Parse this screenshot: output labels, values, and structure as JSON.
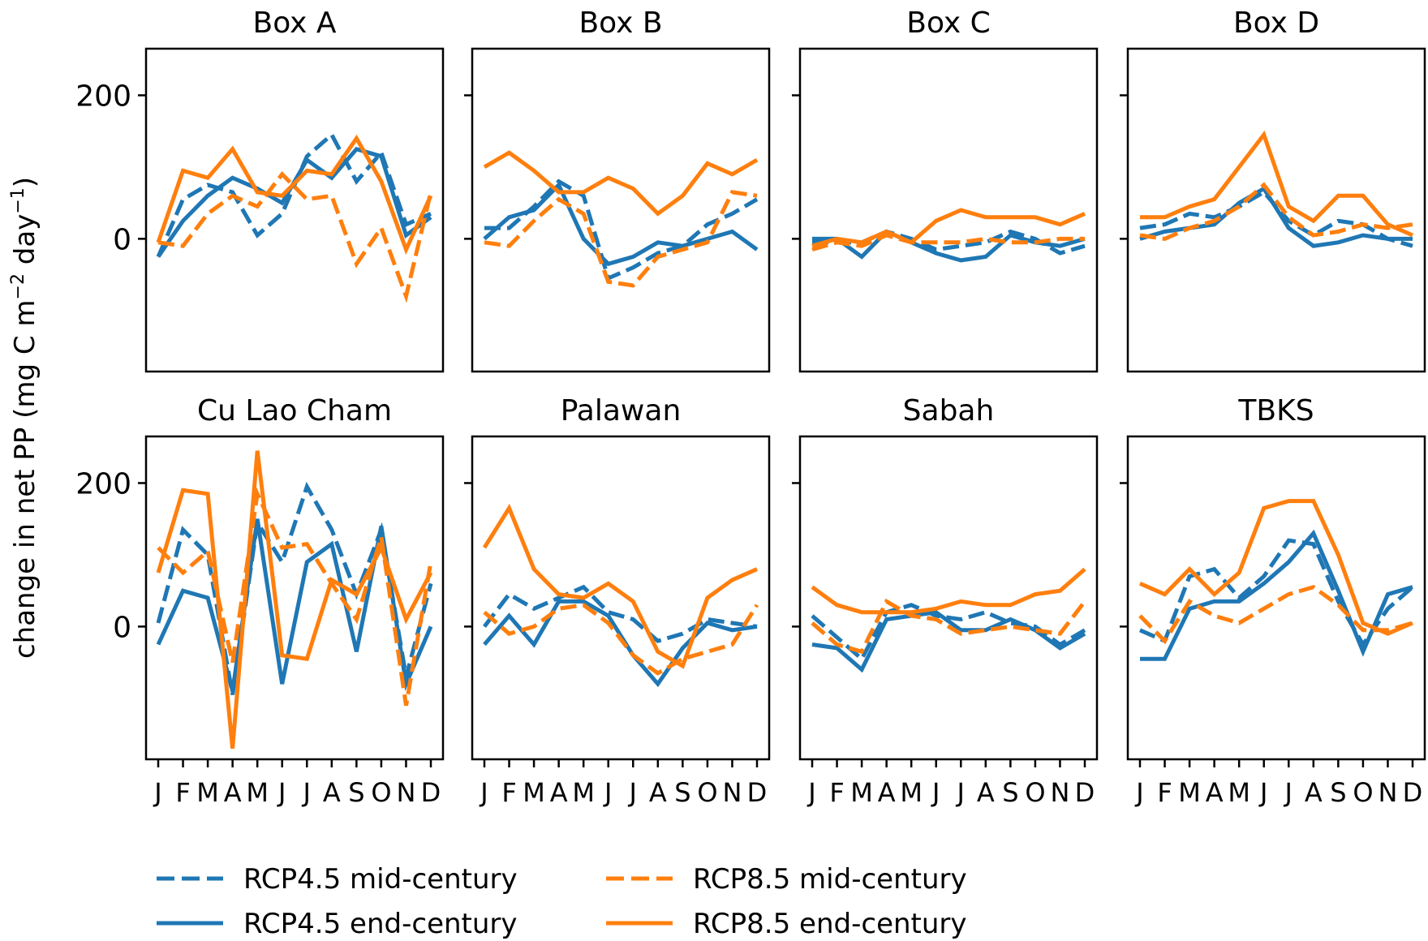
{
  "figure": {
    "ylabel": "change in net PP (mg C m",
    "ylabel_sup1": "−2",
    "ylabel_mid": " day",
    "ylabel_sup2": "−1",
    "ylabel_end": ")"
  },
  "legend": {
    "entries": [
      {
        "label": "RCP4.5 mid-century",
        "color": "#1f77b4",
        "style": "dashed"
      },
      {
        "label": "RCP8.5 mid-century",
        "color": "#ff7f0e",
        "style": "dashed"
      },
      {
        "label": "RCP4.5 end-century",
        "color": "#1f77b4",
        "style": "solid"
      },
      {
        "label": "RCP8.5 end-century",
        "color": "#ff7f0e",
        "style": "solid"
      }
    ]
  },
  "chart_data": [
    {
      "type": "line",
      "title": "Box A",
      "categories": [
        "J",
        "F",
        "M",
        "A",
        "M",
        "J",
        "J",
        "A",
        "S",
        "O",
        "N",
        "D"
      ],
      "ylim": [
        -185,
        265
      ],
      "yticks": [
        "200",
        "0"
      ],
      "series": [
        {
          "name": "RCP4.5 mid-century",
          "values": [
            -25,
            55,
            75,
            65,
            5,
            35,
            115,
            145,
            80,
            120,
            20,
            35
          ]
        },
        {
          "name": "RCP4.5 end-century",
          "values": [
            -25,
            25,
            60,
            85,
            70,
            50,
            110,
            85,
            125,
            115,
            5,
            30
          ]
        },
        {
          "name": "RCP8.5 mid-century",
          "values": [
            -5,
            -10,
            35,
            60,
            45,
            90,
            55,
            60,
            -35,
            15,
            -80,
            65
          ]
        },
        {
          "name": "RCP8.5 end-century",
          "values": [
            -5,
            95,
            85,
            125,
            65,
            60,
            95,
            90,
            140,
            80,
            -15,
            60
          ]
        }
      ]
    },
    {
      "type": "line",
      "title": "Box B",
      "categories": [
        "J",
        "F",
        "M",
        "A",
        "M",
        "J",
        "J",
        "A",
        "S",
        "O",
        "N",
        "D"
      ],
      "ylim": [
        -185,
        265
      ],
      "yticks": [
        "",
        ""
      ],
      "series": [
        {
          "name": "RCP4.5 mid-century",
          "values": [
            15,
            15,
            45,
            80,
            60,
            -55,
            -40,
            -20,
            -10,
            20,
            35,
            55
          ]
        },
        {
          "name": "RCP4.5 end-century",
          "values": [
            0,
            30,
            40,
            75,
            0,
            -35,
            -25,
            -5,
            -10,
            0,
            10,
            -15
          ]
        },
        {
          "name": "RCP8.5 mid-century",
          "values": [
            -5,
            -10,
            25,
            55,
            35,
            -60,
            -65,
            -25,
            -15,
            -5,
            65,
            60
          ]
        },
        {
          "name": "RCP8.5 end-century",
          "values": [
            100,
            120,
            95,
            65,
            65,
            85,
            70,
            35,
            60,
            105,
            90,
            110
          ]
        }
      ]
    },
    {
      "type": "line",
      "title": "Box C",
      "categories": [
        "J",
        "F",
        "M",
        "A",
        "M",
        "J",
        "J",
        "A",
        "S",
        "O",
        "N",
        "D"
      ],
      "ylim": [
        -185,
        265
      ],
      "yticks": [
        "",
        ""
      ],
      "series": [
        {
          "name": "RCP4.5 mid-century",
          "values": [
            -5,
            -5,
            -5,
            10,
            0,
            -15,
            -10,
            -5,
            10,
            0,
            -20,
            -10
          ]
        },
        {
          "name": "RCP4.5 end-century",
          "values": [
            0,
            0,
            -25,
            10,
            -5,
            -20,
            -30,
            -25,
            5,
            -5,
            -10,
            0
          ]
        },
        {
          "name": "RCP8.5 mid-century",
          "values": [
            -15,
            -5,
            -10,
            5,
            -5,
            -5,
            -5,
            0,
            -5,
            -5,
            0,
            0
          ]
        },
        {
          "name": "RCP8.5 end-century",
          "values": [
            -10,
            0,
            -5,
            10,
            -5,
            25,
            40,
            30,
            30,
            30,
            20,
            35
          ]
        }
      ]
    },
    {
      "type": "line",
      "title": "Box D",
      "categories": [
        "J",
        "F",
        "M",
        "A",
        "M",
        "J",
        "J",
        "A",
        "S",
        "O",
        "N",
        "D"
      ],
      "ylim": [
        -185,
        265
      ],
      "yticks": [
        "",
        ""
      ],
      "series": [
        {
          "name": "RCP4.5 mid-century",
          "values": [
            15,
            20,
            35,
            30,
            45,
            65,
            25,
            5,
            25,
            20,
            0,
            -10
          ]
        },
        {
          "name": "RCP4.5 end-century",
          "values": [
            0,
            10,
            15,
            20,
            50,
            70,
            15,
            -10,
            -5,
            5,
            0,
            0
          ]
        },
        {
          "name": "RCP8.5 mid-century",
          "values": [
            5,
            0,
            15,
            25,
            45,
            75,
            30,
            5,
            10,
            20,
            15,
            20
          ]
        },
        {
          "name": "RCP8.5 end-century",
          "values": [
            30,
            30,
            45,
            55,
            100,
            145,
            45,
            25,
            60,
            60,
            20,
            5
          ]
        }
      ]
    },
    {
      "type": "line",
      "title": "Cu Lao Cham",
      "categories": [
        "J",
        "F",
        "M",
        "A",
        "M",
        "J",
        "J",
        "A",
        "S",
        "O",
        "N",
        "D"
      ],
      "ylim": [
        -185,
        265
      ],
      "yticks": [
        "200",
        "0"
      ],
      "series": [
        {
          "name": "RCP4.5 mid-century",
          "values": [
            5,
            135,
            100,
            -95,
            145,
            90,
            195,
            135,
            45,
            135,
            -70,
            60
          ]
        },
        {
          "name": "RCP4.5 end-century",
          "values": [
            -25,
            50,
            40,
            -90,
            150,
            -80,
            90,
            115,
            -35,
            140,
            -80,
            0
          ]
        },
        {
          "name": "RCP8.5 mid-century",
          "values": [
            110,
            75,
            105,
            -50,
            185,
            110,
            115,
            60,
            10,
            125,
            -110,
            90
          ]
        },
        {
          "name": "RCP8.5 end-century",
          "values": [
            75,
            190,
            185,
            -170,
            245,
            -40,
            -45,
            65,
            45,
            110,
            10,
            75
          ]
        }
      ]
    },
    {
      "type": "line",
      "title": "Palawan",
      "categories": [
        "J",
        "F",
        "M",
        "A",
        "M",
        "J",
        "J",
        "A",
        "S",
        "O",
        "N",
        "D"
      ],
      "ylim": [
        -185,
        265
      ],
      "yticks": [
        "",
        ""
      ],
      "series": [
        {
          "name": "RCP4.5 mid-century",
          "values": [
            0,
            45,
            25,
            40,
            55,
            20,
            10,
            -20,
            -10,
            10,
            5,
            0
          ]
        },
        {
          "name": "RCP4.5 end-century",
          "values": [
            -25,
            15,
            -25,
            35,
            35,
            15,
            -40,
            -80,
            -30,
            5,
            -5,
            0
          ]
        },
        {
          "name": "RCP8.5 mid-century",
          "values": [
            20,
            -10,
            0,
            25,
            30,
            5,
            -40,
            -65,
            -45,
            -35,
            -25,
            30
          ]
        },
        {
          "name": "RCP8.5 end-century",
          "values": [
            110,
            165,
            80,
            45,
            40,
            60,
            35,
            -35,
            -55,
            40,
            65,
            80
          ]
        }
      ]
    },
    {
      "type": "line",
      "title": "Sabah",
      "categories": [
        "J",
        "F",
        "M",
        "A",
        "M",
        "J",
        "J",
        "A",
        "S",
        "O",
        "N",
        "D"
      ],
      "ylim": [
        -185,
        265
      ],
      "yticks": [
        "",
        ""
      ],
      "series": [
        {
          "name": "RCP4.5 mid-century",
          "values": [
            15,
            -15,
            -45,
            20,
            30,
            15,
            10,
            20,
            5,
            0,
            -25,
            -5
          ]
        },
        {
          "name": "RCP4.5 end-century",
          "values": [
            -25,
            -30,
            -60,
            10,
            15,
            20,
            -5,
            -5,
            10,
            -5,
            -30,
            -10
          ]
        },
        {
          "name": "RCP8.5 mid-century",
          "values": [
            5,
            -25,
            -35,
            35,
            15,
            10,
            -10,
            -5,
            0,
            -5,
            -10,
            35
          ]
        },
        {
          "name": "RCP8.5 end-century",
          "values": [
            55,
            30,
            20,
            20,
            20,
            25,
            35,
            30,
            30,
            45,
            50,
            80
          ]
        }
      ]
    },
    {
      "type": "line",
      "title": "TBKS",
      "categories": [
        "J",
        "F",
        "M",
        "A",
        "M",
        "J",
        "J",
        "A",
        "S",
        "O",
        "N",
        "D"
      ],
      "ylim": [
        -185,
        265
      ],
      "yticks": [
        "",
        ""
      ],
      "series": [
        {
          "name": "RCP4.5 mid-century",
          "values": [
            -5,
            -20,
            70,
            80,
            40,
            70,
            120,
            115,
            35,
            -25,
            25,
            55
          ]
        },
        {
          "name": "RCP4.5 end-century",
          "values": [
            -45,
            -45,
            25,
            35,
            35,
            60,
            90,
            130,
            50,
            -35,
            45,
            55
          ]
        },
        {
          "name": "RCP8.5 mid-century",
          "values": [
            15,
            -20,
            35,
            15,
            5,
            25,
            45,
            55,
            30,
            -5,
            -5,
            5
          ]
        },
        {
          "name": "RCP8.5 end-century",
          "values": [
            60,
            45,
            80,
            45,
            75,
            165,
            175,
            175,
            100,
            5,
            -10,
            5
          ]
        }
      ]
    }
  ]
}
